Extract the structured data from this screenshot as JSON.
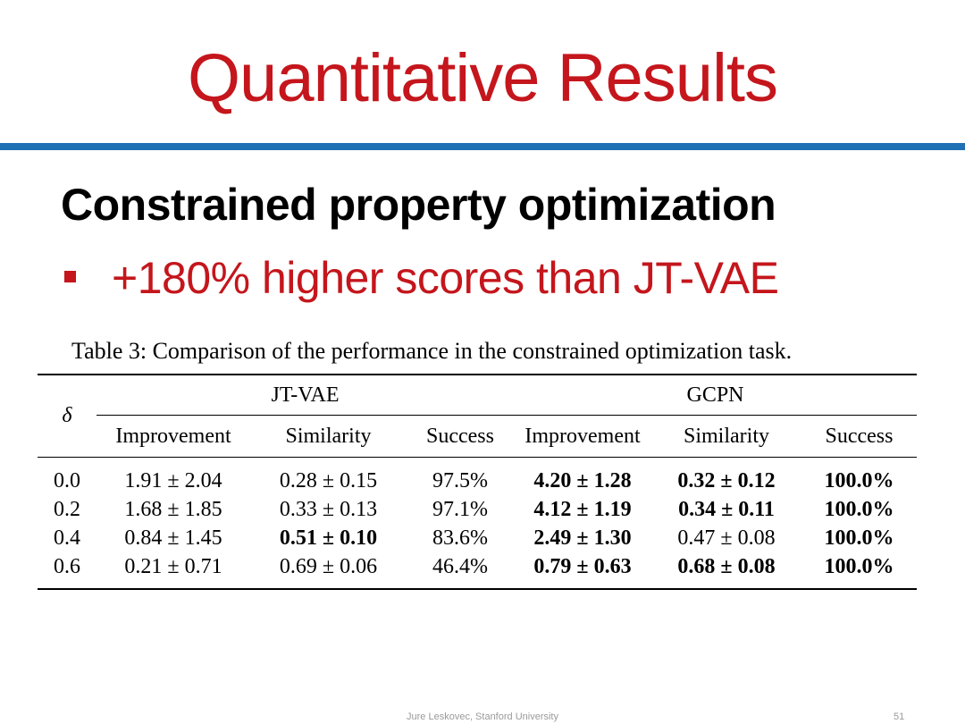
{
  "slide": {
    "title": "Quantitative Results",
    "heading": "Constrained property optimization",
    "bullet": "+180% higher scores than JT-VAE",
    "footer": "Jure Leskovec, Stanford University",
    "page_number": "51",
    "colors": {
      "title": "#c4161c",
      "rule": "#1f6fb5",
      "bullet": "#c4161c"
    }
  },
  "table": {
    "caption": "Table 3: Comparison of the performance in the constrained optimization task.",
    "row_header": "δ",
    "groups": [
      "JT-VAE",
      "GCPN"
    ],
    "columns": [
      "Improvement",
      "Similarity",
      "Success",
      "Improvement",
      "Similarity",
      "Success"
    ],
    "rows": [
      {
        "delta": "0.0",
        "cells": [
          "1.91 ± 2.04",
          "0.28 ± 0.15",
          "97.5%",
          "4.20 ± 1.28",
          "0.32 ± 0.12",
          "100.0%"
        ],
        "bold": [
          false,
          false,
          false,
          true,
          true,
          true
        ]
      },
      {
        "delta": "0.2",
        "cells": [
          "1.68 ± 1.85",
          "0.33 ± 0.13",
          "97.1%",
          "4.12 ± 1.19",
          "0.34 ± 0.11",
          "100.0%"
        ],
        "bold": [
          false,
          false,
          false,
          true,
          true,
          true
        ]
      },
      {
        "delta": "0.4",
        "cells": [
          "0.84 ± 1.45",
          "0.51 ± 0.10",
          "83.6%",
          "2.49 ± 1.30",
          "0.47 ± 0.08",
          "100.0%"
        ],
        "bold": [
          false,
          true,
          false,
          true,
          false,
          true
        ]
      },
      {
        "delta": "0.6",
        "cells": [
          "0.21 ± 0.71",
          "0.69 ± 0.06",
          "46.4%",
          "0.79 ± 0.63",
          "0.68 ± 0.08",
          "100.0%"
        ],
        "bold": [
          false,
          false,
          false,
          true,
          true,
          true
        ]
      }
    ]
  }
}
